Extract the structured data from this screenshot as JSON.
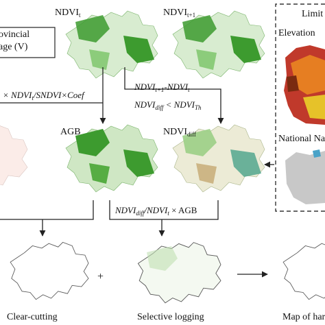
{
  "labels": {
    "ndvi_t": {
      "base": "NDVI",
      "sub": "t"
    },
    "ndvi_t1": {
      "base": "NDVI",
      "sub": "t+1"
    },
    "agb": "AGB",
    "ndvi_diff": {
      "base": "NDVI",
      "sub": "diff"
    },
    "provincial_line1": "ovincial",
    "provincial_line2": "age (V)",
    "limit_title": "Limit",
    "elevation": "Elevation",
    "national": "National Na",
    "plus": "+",
    "clear_cutting": "Clear-cutting",
    "selective_logging": "Selective logging",
    "map_of_harvest": "Map of har"
  },
  "formulas": {
    "agb_formula": {
      "prefix": "× ",
      "a": "NDVI",
      "a_sub": "t",
      "rest": "/SNDVI×Coef"
    },
    "diff_line1": {
      "a": "NDVI",
      "a_sub": "t+1",
      "mid": "-NDVI",
      "b_sub": "t"
    },
    "diff_line2": {
      "a": "NDVI",
      "a_sub": "diff",
      "mid": " < NDVI",
      "b_sub": "Th"
    },
    "logging_formula": {
      "a": "NDVI",
      "a_sub": "diff",
      "mid": "/NDVI",
      "b_sub": "t",
      "rest": " × AGB"
    }
  },
  "colors": {
    "forest_green": "#3d9b2f",
    "light_green": "#9ccf86",
    "diff_brown": "#b58a45",
    "diff_teal": "#4aa38a",
    "elevation_red": "#c0392b",
    "elevation_yellow": "#e6c229",
    "outline": "#444444",
    "province_gray": "#c8c8c8"
  }
}
